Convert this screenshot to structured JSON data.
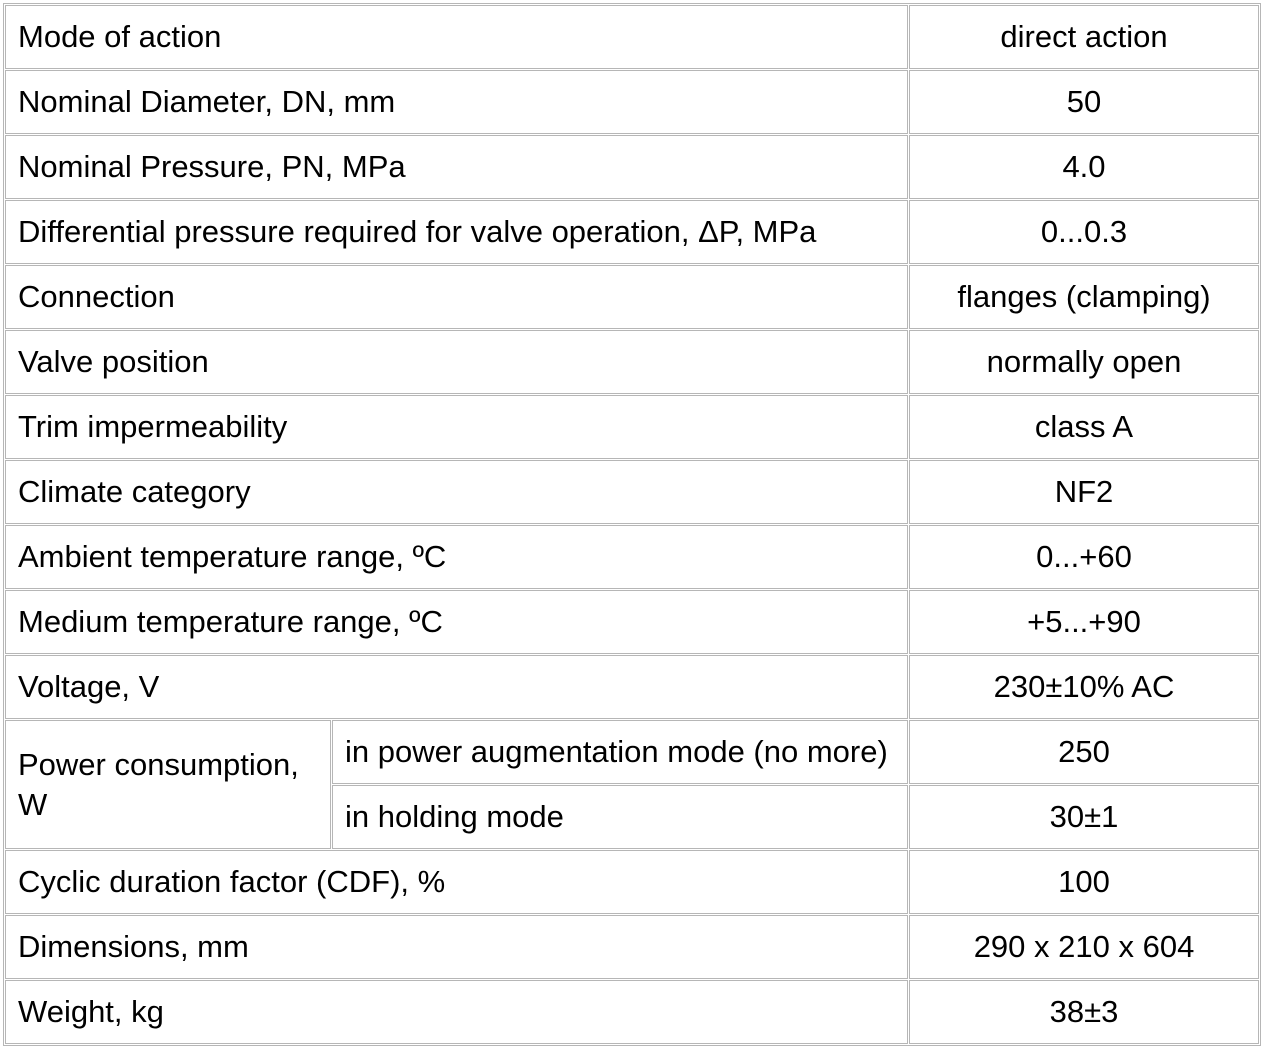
{
  "colors": {
    "border": "#b6b6b6",
    "background": "#ffffff",
    "text": "#000000"
  },
  "table": {
    "rows": [
      {
        "label": "Mode of action",
        "value": "direct action"
      },
      {
        "label": "Nominal Diameter, DN, mm",
        "value": "50"
      },
      {
        "label": "Nominal Pressure, PN, MPa",
        "value": "4.0"
      },
      {
        "label": "Differential pressure required for valve operation, ΔP, MPa",
        "value": "0...0.3"
      },
      {
        "label": "Connection",
        "value": "flanges (clamping)"
      },
      {
        "label": "Valve position",
        "value": "normally open"
      },
      {
        "label": "Trim impermeability",
        "value": "class A"
      },
      {
        "label": "Climate category",
        "value": "NF2"
      },
      {
        "label": "Ambient temperature range, ºC",
        "value": "0...+60"
      },
      {
        "label": "Medium temperature range, ºC",
        "value": "+5...+90"
      },
      {
        "label": "Voltage, V",
        "value": "230±10% AC"
      },
      {
        "group": "Power consumption, W",
        "subrows": [
          {
            "label": "in power augmentation mode (no more)",
            "value": "250"
          },
          {
            "label": "in holding mode",
            "value": "30±1"
          }
        ]
      },
      {
        "label": "Cyclic duration factor (CDF), %",
        "value": "100"
      },
      {
        "label": "Dimensions, mm",
        "value": "290 x 210 x 604"
      },
      {
        "label": "Weight, kg",
        "value": "38±3"
      }
    ]
  }
}
